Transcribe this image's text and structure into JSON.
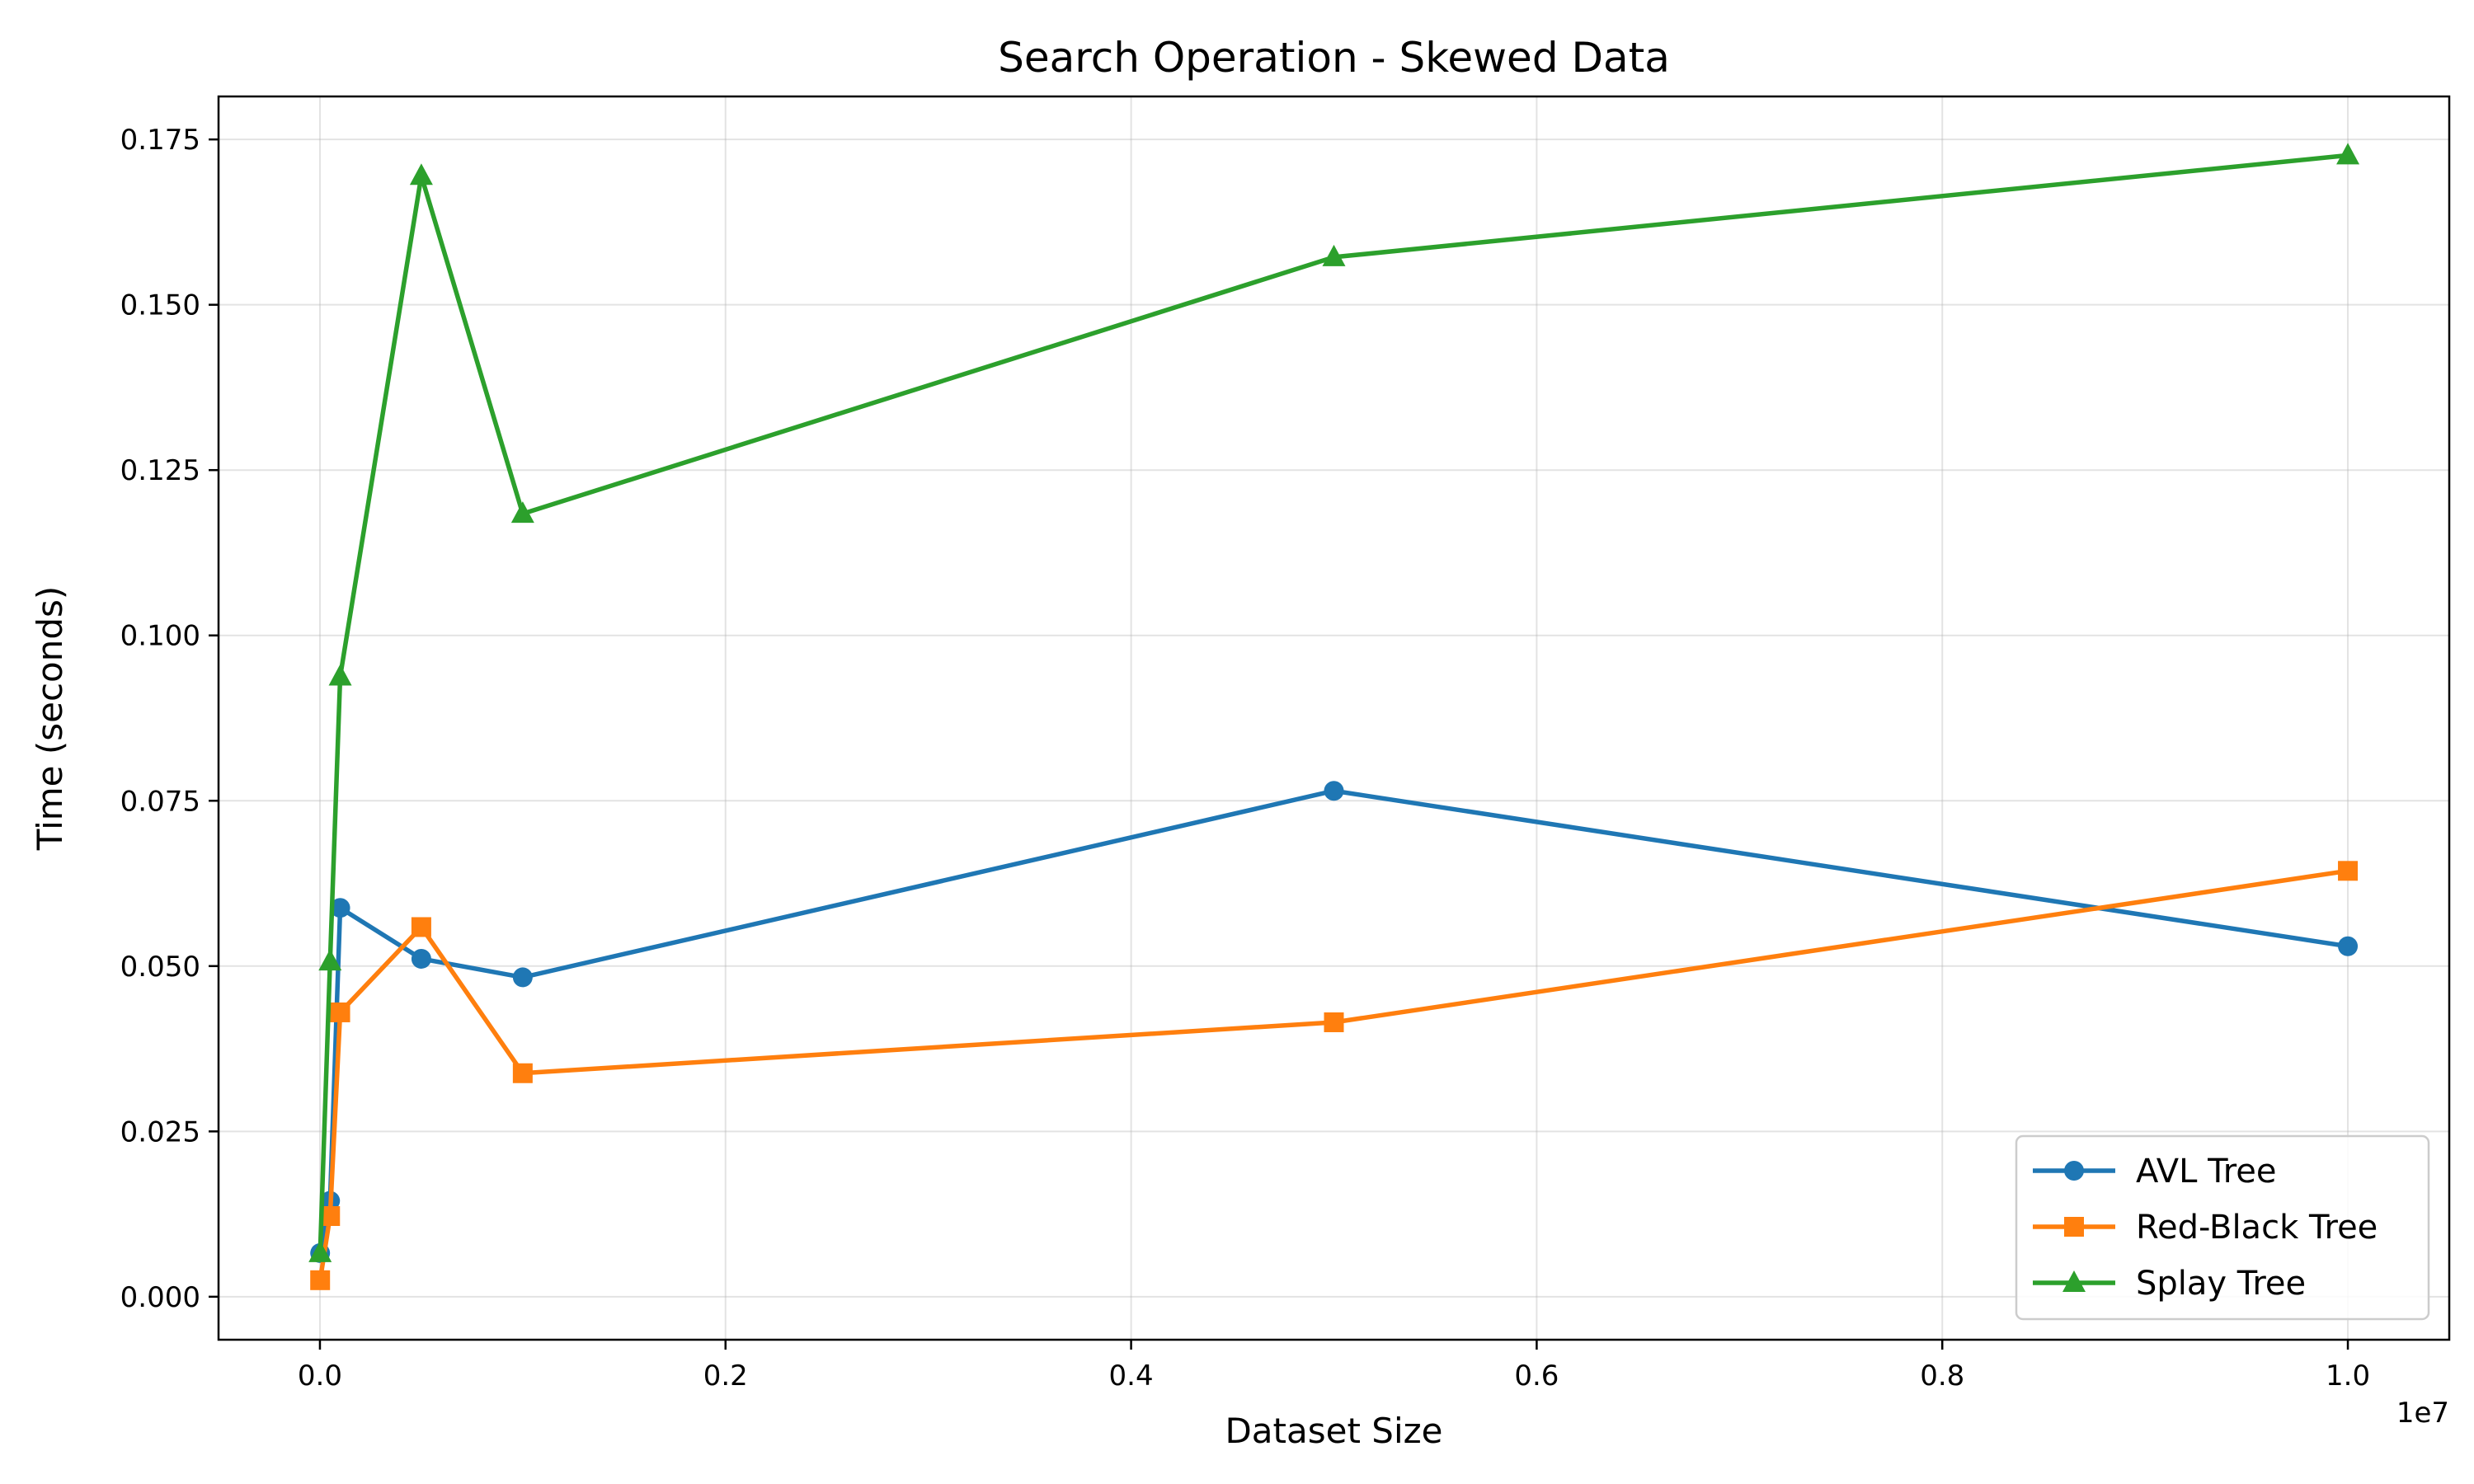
{
  "chart_data": {
    "type": "line",
    "title": "Search Operation - Skewed Data",
    "xlabel": "Dataset Size",
    "ylabel": "Time (seconds)",
    "x_offset_label": "1e7",
    "x_scale": 10000000,
    "xlim": [
      -0.05,
      1.05
    ],
    "ylim": [
      -0.0065,
      0.1815
    ],
    "x_ticks": [
      0.0,
      0.2,
      0.4,
      0.6,
      0.8,
      1.0
    ],
    "x_tick_labels": [
      "0.0",
      "0.2",
      "0.4",
      "0.6",
      "0.8",
      "1.0"
    ],
    "y_ticks": [
      0.0,
      0.025,
      0.05,
      0.075,
      0.1,
      0.125,
      0.15,
      0.175
    ],
    "y_tick_labels": [
      "0.000",
      "0.025",
      "0.050",
      "0.075",
      "0.100",
      "0.125",
      "0.150",
      "0.175"
    ],
    "grid": true,
    "legend_position": "lower-right",
    "x": [
      1000,
      50000,
      100000,
      500000,
      1000000,
      5000000,
      10000000
    ],
    "series": [
      {
        "name": "AVL Tree",
        "color": "#1f77b4",
        "marker": "circle",
        "values": [
          0.0066,
          0.0145,
          0.0588,
          0.0511,
          0.0483,
          0.0765,
          0.053
        ]
      },
      {
        "name": "Red-Black Tree",
        "color": "#ff7f0e",
        "marker": "square",
        "values": [
          0.0025,
          0.0122,
          0.043,
          0.0559,
          0.0338,
          0.0415,
          0.0644
        ]
      },
      {
        "name": "Splay Tree",
        "color": "#2ca02c",
        "marker": "triangle",
        "values": [
          0.0066,
          0.0507,
          0.0938,
          0.1695,
          0.1184,
          0.1572,
          0.1726
        ]
      }
    ]
  }
}
